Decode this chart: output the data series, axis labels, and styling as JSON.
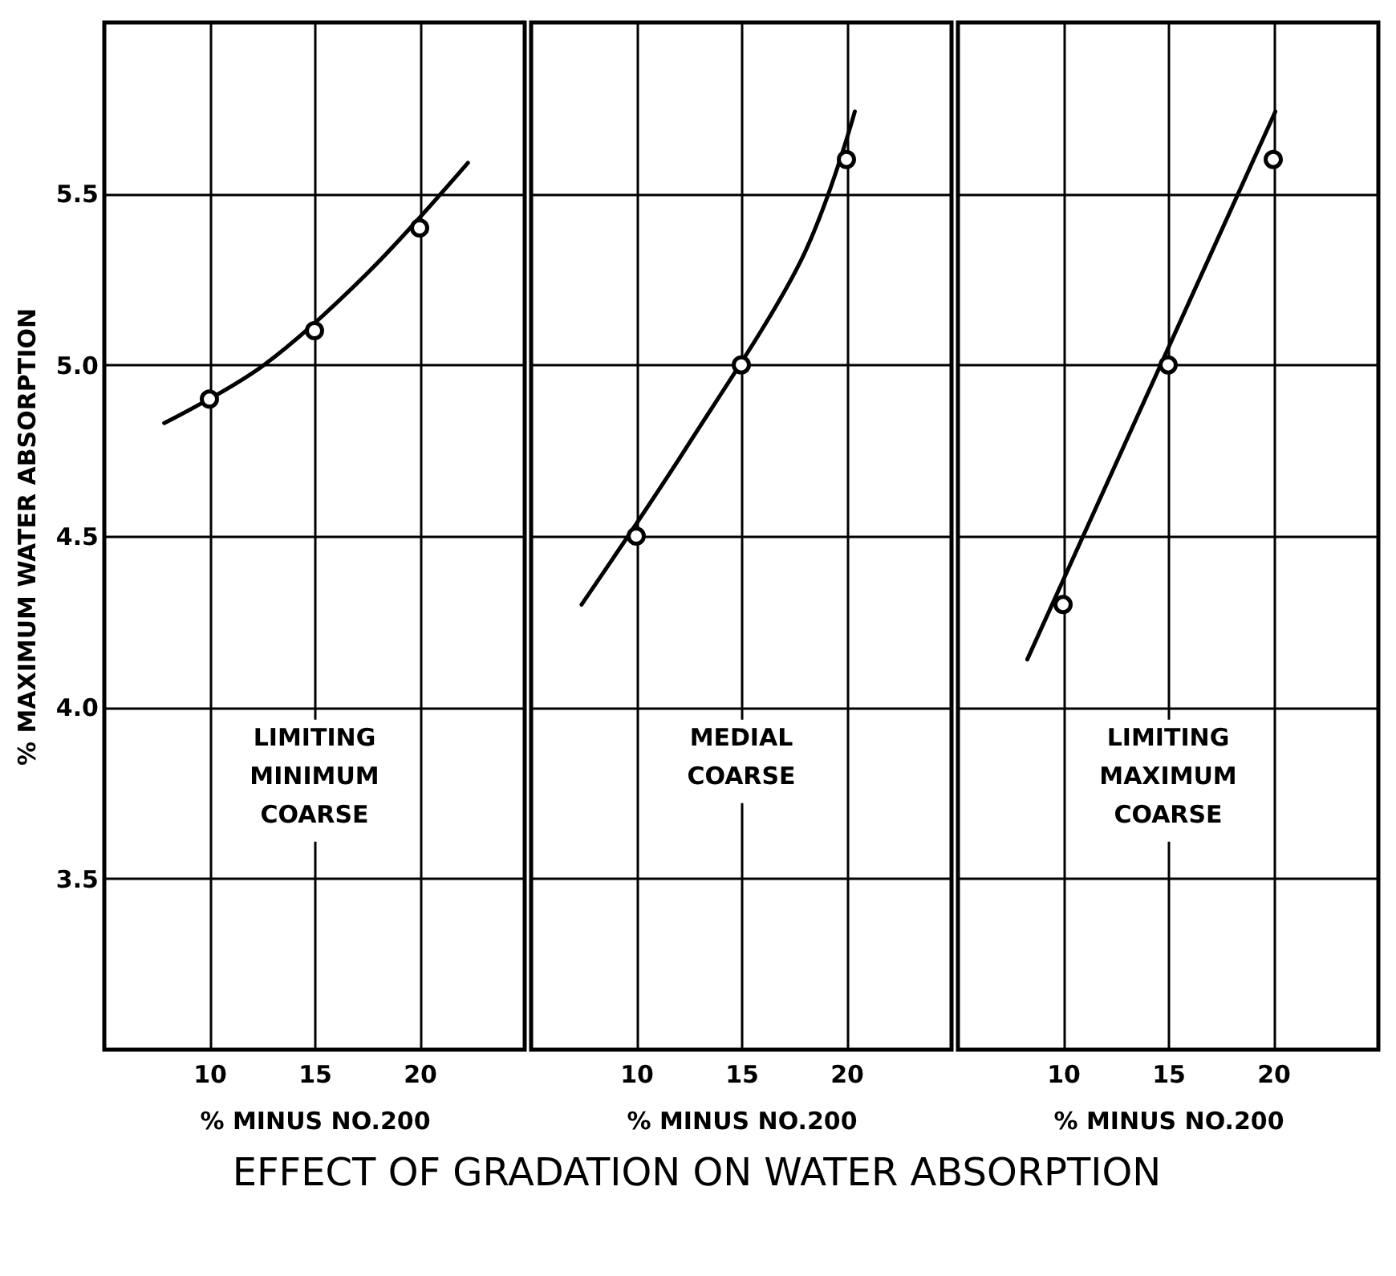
{
  "chart_data": [
    {
      "type": "line",
      "title": "EFFECT OF GRADATION ON WATER ABSORPTION",
      "xlabel": "% MINUS NO.200",
      "ylabel": "% MAXIMUM WATER ABSORPTION",
      "xlim": [
        5,
        25
      ],
      "ylim": [
        3.0,
        6.0
      ],
      "xticks": [
        10,
        15,
        20
      ],
      "yticks": [
        3.5,
        {
          "value": 4,
          "label": "4.0"
        },
        4.5,
        {
          "value": 5,
          "label": "5.0"
        },
        5.5
      ],
      "grid": true,
      "marker": "circle",
      "annotations": [
        "LIMITING MINIMUM COARSE"
      ],
      "series": [
        {
          "type": "line",
          "color": "#000000",
          "marker": "none",
          "x": [
            7.85,
            12.6,
            17.55,
            22.3
          ],
          "values": [
            4.83,
            5.0,
            5.27,
            5.59
          ]
        },
        {
          "type": "scatter",
          "color": "#000000",
          "x": [
            10,
            15,
            20
          ],
          "values": [
            4.9,
            5.1,
            5.4
          ]
        }
      ]
    },
    {
      "type": "line",
      "xlabel": "% MINUS NO.200",
      "xlim": [
        5,
        25
      ],
      "ylim": [
        3.0,
        6.0
      ],
      "xticks": [
        10,
        15,
        20
      ],
      "yticks": [
        3.5,
        4,
        4.5,
        5,
        5.5
      ],
      "grid": true,
      "marker": "circle",
      "tick_labels": "x",
      "annotations": [
        "MEDIAL COARSE"
      ],
      "series": [
        {
          "type": "line",
          "color": "#000000",
          "marker": "none",
          "x": [
            7.4,
            12.4,
            17.8,
            20.4
          ],
          "values": [
            4.3,
            4.76,
            5.3,
            5.74
          ]
        },
        {
          "type": "scatter",
          "color": "#000000",
          "x": [
            10,
            15,
            20
          ],
          "values": [
            4.5,
            5.0,
            5.6
          ]
        }
      ]
    },
    {
      "type": "line",
      "xlabel": "% MINUS NO.200",
      "xlim": [
        5,
        25
      ],
      "ylim": [
        3.0,
        6.0
      ],
      "xticks": [
        10,
        15,
        20
      ],
      "yticks": [
        3.5,
        4,
        4.5,
        5,
        5.5
      ],
      "grid": true,
      "marker": "circle",
      "tick_labels": "x",
      "annotations": [
        "LIMITING MAXIMUM COARSE"
      ],
      "series": [
        {
          "type": "line",
          "color": "#000000",
          "marker": "none",
          "x": [
            8.3,
            20.1
          ],
          "values": [
            4.14,
            5.74
          ]
        },
        {
          "type": "scatter",
          "color": "#000000",
          "x": [
            10,
            15,
            20
          ],
          "values": [
            4.3,
            5.0,
            5.6
          ]
        }
      ]
    }
  ]
}
